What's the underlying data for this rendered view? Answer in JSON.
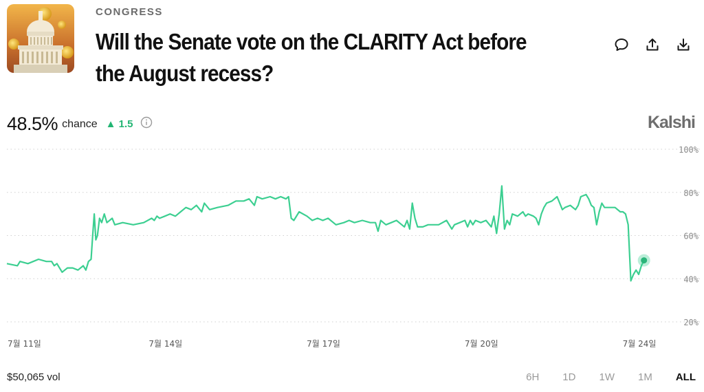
{
  "header": {
    "category": "CONGRESS",
    "title": "Will the Senate vote on the CLARITY Act before the August recess?"
  },
  "actions": {
    "icons": [
      "comment-icon",
      "share-icon",
      "download-icon"
    ]
  },
  "stats": {
    "chance_value": "48.5%",
    "chance_label": "chance",
    "delta": "▲ 1.5",
    "delta_color": "#22b573"
  },
  "brand": "Kalshi",
  "footer": {
    "volume": "$50,065 vol",
    "ranges": [
      "6H",
      "1D",
      "1W",
      "1M",
      "ALL"
    ],
    "active_range": "ALL"
  },
  "chart_data": {
    "type": "line",
    "color": "#3ccf91",
    "ylim": [
      20,
      100
    ],
    "y_ticks": [
      "100%",
      "80%",
      "60%",
      "40%",
      "20%"
    ],
    "y_tick_values": [
      100,
      80,
      60,
      40,
      20
    ],
    "x_tick_labels": [
      "7월 11일",
      "7월 14일",
      "7월 17일",
      "7월 20일",
      "7월 24일"
    ],
    "x_tick_values": [
      0,
      3,
      6,
      9,
      12
    ],
    "xlim": [
      0,
      12.6
    ],
    "grid": true,
    "series": [
      {
        "values": [
          [
            0.0,
            47
          ],
          [
            0.2,
            46
          ],
          [
            0.25,
            48
          ],
          [
            0.4,
            47
          ],
          [
            0.5,
            48
          ],
          [
            0.6,
            49
          ],
          [
            0.75,
            48
          ],
          [
            0.85,
            48
          ],
          [
            0.9,
            46
          ],
          [
            0.95,
            47
          ],
          [
            1.0,
            45
          ],
          [
            1.05,
            43
          ],
          [
            1.1,
            44
          ],
          [
            1.15,
            45
          ],
          [
            1.25,
            45
          ],
          [
            1.35,
            44
          ],
          [
            1.45,
            46
          ],
          [
            1.5,
            44
          ],
          [
            1.55,
            48
          ],
          [
            1.6,
            49
          ],
          [
            1.63,
            60
          ],
          [
            1.66,
            70
          ],
          [
            1.69,
            58
          ],
          [
            1.72,
            60
          ],
          [
            1.76,
            68
          ],
          [
            1.8,
            66
          ],
          [
            1.85,
            70
          ],
          [
            1.9,
            66
          ],
          [
            2.0,
            68
          ],
          [
            2.05,
            65
          ],
          [
            2.2,
            66
          ],
          [
            2.4,
            65
          ],
          [
            2.6,
            66
          ],
          [
            2.75,
            68
          ],
          [
            2.8,
            67
          ],
          [
            2.85,
            69
          ],
          [
            2.9,
            68
          ],
          [
            3.0,
            69
          ],
          [
            3.1,
            70
          ],
          [
            3.2,
            69
          ],
          [
            3.3,
            71
          ],
          [
            3.4,
            73
          ],
          [
            3.5,
            72
          ],
          [
            3.6,
            74
          ],
          [
            3.7,
            71
          ],
          [
            3.75,
            75
          ],
          [
            3.85,
            72
          ],
          [
            4.0,
            73
          ],
          [
            4.2,
            74
          ],
          [
            4.35,
            76
          ],
          [
            4.5,
            76
          ],
          [
            4.6,
            77
          ],
          [
            4.7,
            74
          ],
          [
            4.75,
            78
          ],
          [
            4.85,
            77
          ],
          [
            5.0,
            78
          ],
          [
            5.1,
            77
          ],
          [
            5.2,
            78
          ],
          [
            5.3,
            77
          ],
          [
            5.35,
            78
          ],
          [
            5.4,
            68
          ],
          [
            5.45,
            67
          ],
          [
            5.55,
            71
          ],
          [
            5.7,
            69
          ],
          [
            5.8,
            67
          ],
          [
            5.9,
            68
          ],
          [
            6.0,
            67
          ],
          [
            6.1,
            68
          ],
          [
            6.25,
            65
          ],
          [
            6.4,
            66
          ],
          [
            6.5,
            67
          ],
          [
            6.6,
            66
          ],
          [
            6.75,
            67
          ],
          [
            6.9,
            66
          ],
          [
            7.0,
            66
          ],
          [
            7.05,
            62
          ],
          [
            7.1,
            67
          ],
          [
            7.15,
            66
          ],
          [
            7.2,
            65
          ],
          [
            7.3,
            66
          ],
          [
            7.4,
            67
          ],
          [
            7.5,
            65
          ],
          [
            7.55,
            64
          ],
          [
            7.6,
            67
          ],
          [
            7.65,
            63
          ],
          [
            7.7,
            75
          ],
          [
            7.75,
            68
          ],
          [
            7.8,
            64
          ],
          [
            7.9,
            64
          ],
          [
            8.0,
            65
          ],
          [
            8.2,
            65
          ],
          [
            8.35,
            67
          ],
          [
            8.45,
            63
          ],
          [
            8.5,
            65
          ],
          [
            8.6,
            66
          ],
          [
            8.7,
            67
          ],
          [
            8.75,
            64
          ],
          [
            8.8,
            67
          ],
          [
            8.85,
            65
          ],
          [
            8.9,
            67
          ],
          [
            9.0,
            66
          ],
          [
            9.1,
            67
          ],
          [
            9.2,
            64
          ],
          [
            9.25,
            69
          ],
          [
            9.3,
            61
          ],
          [
            9.35,
            70
          ],
          [
            9.4,
            83
          ],
          [
            9.45,
            63
          ],
          [
            9.5,
            67
          ],
          [
            9.55,
            65
          ],
          [
            9.6,
            70
          ],
          [
            9.7,
            69
          ],
          [
            9.8,
            71
          ],
          [
            9.85,
            69
          ],
          [
            9.9,
            70
          ],
          [
            10.0,
            69
          ],
          [
            10.05,
            68
          ],
          [
            10.1,
            65
          ],
          [
            10.15,
            70
          ],
          [
            10.2,
            73
          ],
          [
            10.25,
            75
          ],
          [
            10.35,
            76
          ],
          [
            10.45,
            78
          ],
          [
            10.55,
            72
          ],
          [
            10.6,
            73
          ],
          [
            10.7,
            74
          ],
          [
            10.8,
            72
          ],
          [
            10.85,
            74
          ],
          [
            10.9,
            78
          ],
          [
            11.0,
            79
          ],
          [
            11.05,
            77
          ],
          [
            11.1,
            74
          ],
          [
            11.15,
            73
          ],
          [
            11.2,
            65
          ],
          [
            11.25,
            71
          ],
          [
            11.3,
            75
          ],
          [
            11.35,
            73
          ],
          [
            11.45,
            73
          ],
          [
            11.55,
            73
          ],
          [
            11.65,
            71
          ],
          [
            11.7,
            71
          ],
          [
            11.75,
            70
          ],
          [
            11.8,
            65
          ],
          [
            11.85,
            39
          ],
          [
            11.9,
            42
          ],
          [
            11.95,
            44
          ],
          [
            12.0,
            42
          ],
          [
            12.05,
            46
          ],
          [
            12.1,
            48.5
          ]
        ]
      }
    ]
  }
}
